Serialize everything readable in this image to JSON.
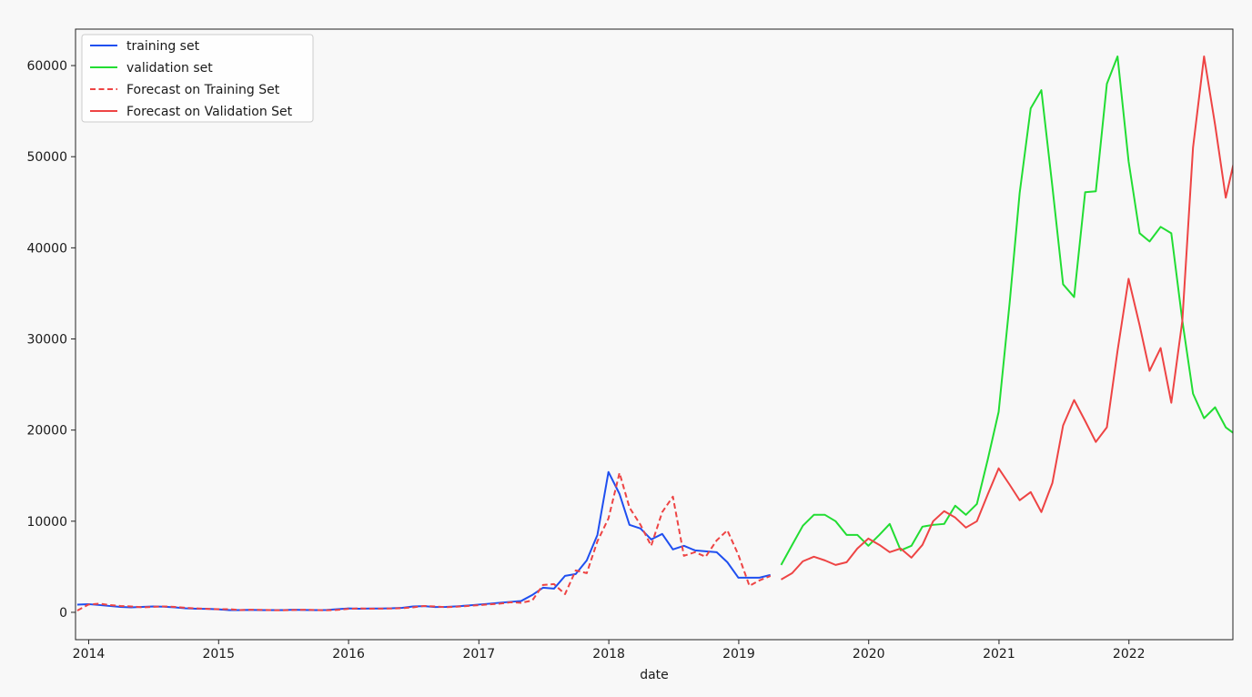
{
  "colors": {
    "background": "#f8f8f8",
    "training": "#1f4ff0",
    "validation": "#22dd33",
    "forecast": "#ee4444"
  },
  "chart_data": {
    "type": "line",
    "title": "",
    "xlabel": "date",
    "ylabel": "",
    "xlim": [
      "2013-11-25",
      "2022-10-20"
    ],
    "ylim": [
      -3000,
      64000
    ],
    "grid": false,
    "legend_position": "top-left",
    "x_ticks": [
      "2014",
      "2015",
      "2016",
      "2017",
      "2018",
      "2019",
      "2020",
      "2021",
      "2022"
    ],
    "y_ticks": [
      0,
      10000,
      20000,
      30000,
      40000,
      50000,
      60000
    ],
    "series": [
      {
        "name": "training set",
        "style": "solid",
        "color": "#1f4ff0",
        "points": [
          [
            "2013-11-30",
            850
          ],
          [
            "2013-12-31",
            900
          ],
          [
            "2014-01-31",
            800
          ],
          [
            "2014-02-28",
            700
          ],
          [
            "2014-03-31",
            600
          ],
          [
            "2014-04-30",
            550
          ],
          [
            "2014-05-31",
            600
          ],
          [
            "2014-06-30",
            650
          ],
          [
            "2014-07-31",
            620
          ],
          [
            "2014-08-31",
            550
          ],
          [
            "2014-09-30",
            450
          ],
          [
            "2014-10-31",
            400
          ],
          [
            "2014-11-30",
            380
          ],
          [
            "2014-12-31",
            330
          ],
          [
            "2015-01-31",
            250
          ],
          [
            "2015-02-28",
            250
          ],
          [
            "2015-03-31",
            270
          ],
          [
            "2015-04-30",
            240
          ],
          [
            "2015-05-31",
            240
          ],
          [
            "2015-06-30",
            250
          ],
          [
            "2015-07-31",
            280
          ],
          [
            "2015-08-31",
            260
          ],
          [
            "2015-09-30",
            240
          ],
          [
            "2015-10-31",
            260
          ],
          [
            "2015-11-30",
            350
          ],
          [
            "2015-12-31",
            430
          ],
          [
            "2016-01-31",
            400
          ],
          [
            "2016-02-29",
            420
          ],
          [
            "2016-03-31",
            420
          ],
          [
            "2016-04-30",
            440
          ],
          [
            "2016-05-31",
            500
          ],
          [
            "2016-06-30",
            650
          ],
          [
            "2016-07-31",
            680
          ],
          [
            "2016-08-31",
            580
          ],
          [
            "2016-09-30",
            600
          ],
          [
            "2016-10-31",
            660
          ],
          [
            "2016-11-30",
            740
          ],
          [
            "2016-12-31",
            850
          ],
          [
            "2017-01-31",
            950
          ],
          [
            "2017-02-28",
            1050
          ],
          [
            "2017-03-31",
            1150
          ],
          [
            "2017-04-30",
            1250
          ],
          [
            "2017-05-31",
            1900
          ],
          [
            "2017-06-30",
            2700
          ],
          [
            "2017-07-31",
            2600
          ],
          [
            "2017-08-31",
            4000
          ],
          [
            "2017-09-30",
            4200
          ],
          [
            "2017-10-31",
            5700
          ],
          [
            "2017-11-30",
            8500
          ],
          [
            "2017-12-31",
            15400
          ],
          [
            "2018-01-31",
            13000
          ],
          [
            "2018-02-28",
            9600
          ],
          [
            "2018-03-31",
            9200
          ],
          [
            "2018-04-30",
            8000
          ],
          [
            "2018-05-31",
            8600
          ],
          [
            "2018-06-30",
            6900
          ],
          [
            "2018-07-31",
            7300
          ],
          [
            "2018-08-31",
            6800
          ],
          [
            "2018-09-30",
            6700
          ],
          [
            "2018-10-31",
            6600
          ],
          [
            "2018-11-30",
            5500
          ],
          [
            "2018-12-31",
            3800
          ],
          [
            "2019-01-31",
            3800
          ],
          [
            "2019-02-28",
            3800
          ],
          [
            "2019-03-31",
            4100
          ]
        ]
      },
      {
        "name": "validation set",
        "style": "solid",
        "color": "#22dd33",
        "points": [
          [
            "2019-04-30",
            5200
          ],
          [
            "2019-05-31",
            7400
          ],
          [
            "2019-06-30",
            9500
          ],
          [
            "2019-07-31",
            10700
          ],
          [
            "2019-08-31",
            10700
          ],
          [
            "2019-09-30",
            10000
          ],
          [
            "2019-10-31",
            8500
          ],
          [
            "2019-11-30",
            8500
          ],
          [
            "2019-12-31",
            7300
          ],
          [
            "2020-01-31",
            8500
          ],
          [
            "2020-02-29",
            9700
          ],
          [
            "2020-03-31",
            6800
          ],
          [
            "2020-04-30",
            7300
          ],
          [
            "2020-05-31",
            9400
          ],
          [
            "2020-06-30",
            9600
          ],
          [
            "2020-07-31",
            9700
          ],
          [
            "2020-08-31",
            11700
          ],
          [
            "2020-09-30",
            10700
          ],
          [
            "2020-10-31",
            11900
          ],
          [
            "2020-11-30",
            16700
          ],
          [
            "2020-12-31",
            22000
          ],
          [
            "2021-01-31",
            34000
          ],
          [
            "2021-02-28",
            46000
          ],
          [
            "2021-03-31",
            55300
          ],
          [
            "2021-04-30",
            57300
          ],
          [
            "2021-05-31",
            46700
          ],
          [
            "2021-06-30",
            36000
          ],
          [
            "2021-07-31",
            34600
          ],
          [
            "2021-08-31",
            46100
          ],
          [
            "2021-09-30",
            46200
          ],
          [
            "2021-10-31",
            58000
          ],
          [
            "2021-11-30",
            61000
          ],
          [
            "2021-12-31",
            49500
          ],
          [
            "2022-01-31",
            41600
          ],
          [
            "2022-02-28",
            40700
          ],
          [
            "2022-03-31",
            42300
          ],
          [
            "2022-04-30",
            41600
          ],
          [
            "2022-05-31",
            32000
          ],
          [
            "2022-06-30",
            24000
          ],
          [
            "2022-07-31",
            21300
          ],
          [
            "2022-08-31",
            22500
          ],
          [
            "2022-09-30",
            20300
          ],
          [
            "2022-10-31",
            19400
          ]
        ]
      },
      {
        "name": "Forecast on Training Set",
        "style": "dashed",
        "color": "#ee4444",
        "points": [
          [
            "2013-11-30",
            200
          ],
          [
            "2013-12-31",
            850
          ],
          [
            "2014-01-31",
            950
          ],
          [
            "2014-02-28",
            800
          ],
          [
            "2014-03-31",
            700
          ],
          [
            "2014-04-30",
            650
          ],
          [
            "2014-05-31",
            550
          ],
          [
            "2014-06-30",
            600
          ],
          [
            "2014-07-31",
            650
          ],
          [
            "2014-08-31",
            600
          ],
          [
            "2014-09-30",
            500
          ],
          [
            "2014-10-31",
            430
          ],
          [
            "2014-11-30",
            380
          ],
          [
            "2014-12-31",
            350
          ],
          [
            "2015-01-31",
            350
          ],
          [
            "2015-02-28",
            250
          ],
          [
            "2015-03-31",
            280
          ],
          [
            "2015-04-30",
            270
          ],
          [
            "2015-05-31",
            240
          ],
          [
            "2015-06-30",
            230
          ],
          [
            "2015-07-31",
            260
          ],
          [
            "2015-08-31",
            280
          ],
          [
            "2015-09-30",
            250
          ],
          [
            "2015-10-31",
            230
          ],
          [
            "2015-11-30",
            270
          ],
          [
            "2015-12-31",
            380
          ],
          [
            "2016-01-31",
            440
          ],
          [
            "2016-02-29",
            400
          ],
          [
            "2016-03-31",
            410
          ],
          [
            "2016-04-30",
            420
          ],
          [
            "2016-05-31",
            460
          ],
          [
            "2016-06-30",
            550
          ],
          [
            "2016-07-31",
            700
          ],
          [
            "2016-08-31",
            650
          ],
          [
            "2016-09-30",
            570
          ],
          [
            "2016-10-31",
            620
          ],
          [
            "2016-11-30",
            700
          ],
          [
            "2016-12-31",
            780
          ],
          [
            "2017-01-31",
            880
          ],
          [
            "2017-02-28",
            950
          ],
          [
            "2017-03-31",
            1100
          ],
          [
            "2017-04-30",
            1050
          ],
          [
            "2017-05-31",
            1300
          ],
          [
            "2017-06-30",
            3000
          ],
          [
            "2017-07-31",
            3100
          ],
          [
            "2017-08-31",
            2000
          ],
          [
            "2017-09-30",
            4600
          ],
          [
            "2017-10-31",
            4300
          ],
          [
            "2017-11-30",
            7800
          ],
          [
            "2017-12-31",
            10300
          ],
          [
            "2018-01-31",
            15300
          ],
          [
            "2018-02-28",
            11500
          ],
          [
            "2018-03-31",
            9600
          ],
          [
            "2018-04-30",
            7300
          ],
          [
            "2018-05-31",
            11000
          ],
          [
            "2018-06-30",
            12700
          ],
          [
            "2018-07-31",
            6200
          ],
          [
            "2018-08-31",
            6600
          ],
          [
            "2018-09-30",
            6100
          ],
          [
            "2018-10-31",
            7900
          ],
          [
            "2018-11-30",
            9000
          ],
          [
            "2018-12-31",
            6300
          ],
          [
            "2019-01-31",
            2900
          ],
          [
            "2019-02-28",
            3500
          ],
          [
            "2019-03-31",
            4000
          ]
        ]
      },
      {
        "name": "Forecast on Validation Set",
        "style": "solid",
        "color": "#ee4444",
        "points": [
          [
            "2019-04-30",
            3600
          ],
          [
            "2019-05-31",
            4300
          ],
          [
            "2019-06-30",
            5600
          ],
          [
            "2019-07-31",
            6100
          ],
          [
            "2019-08-31",
            5700
          ],
          [
            "2019-09-30",
            5200
          ],
          [
            "2019-10-31",
            5500
          ],
          [
            "2019-11-30",
            7000
          ],
          [
            "2019-12-31",
            8100
          ],
          [
            "2020-01-31",
            7400
          ],
          [
            "2020-02-29",
            6600
          ],
          [
            "2020-03-31",
            7000
          ],
          [
            "2020-04-30",
            6000
          ],
          [
            "2020-05-31",
            7400
          ],
          [
            "2020-06-30",
            10000
          ],
          [
            "2020-07-31",
            11100
          ],
          [
            "2020-08-31",
            10400
          ],
          [
            "2020-09-30",
            9300
          ],
          [
            "2020-10-31",
            10000
          ],
          [
            "2020-11-30",
            12900
          ],
          [
            "2020-12-31",
            15800
          ],
          [
            "2021-01-31",
            14000
          ],
          [
            "2021-02-28",
            12300
          ],
          [
            "2021-03-31",
            13200
          ],
          [
            "2021-04-30",
            11000
          ],
          [
            "2021-05-31",
            14200
          ],
          [
            "2021-06-30",
            20500
          ],
          [
            "2021-07-31",
            23300
          ],
          [
            "2021-08-31",
            21000
          ],
          [
            "2021-09-30",
            18700
          ],
          [
            "2021-10-31",
            20300
          ],
          [
            "2021-11-30",
            28700
          ],
          [
            "2021-12-31",
            36600
          ],
          [
            "2022-01-31",
            31500
          ],
          [
            "2022-02-28",
            26500
          ],
          [
            "2022-03-31",
            29000
          ],
          [
            "2022-04-30",
            23000
          ],
          [
            "2022-05-31",
            32000
          ],
          [
            "2022-06-30",
            51000
          ],
          [
            "2022-07-31",
            61000
          ],
          [
            "2022-08-31",
            53500
          ],
          [
            "2022-09-30",
            45500
          ],
          [
            "2022-10-31",
            50800
          ]
        ]
      }
    ]
  }
}
